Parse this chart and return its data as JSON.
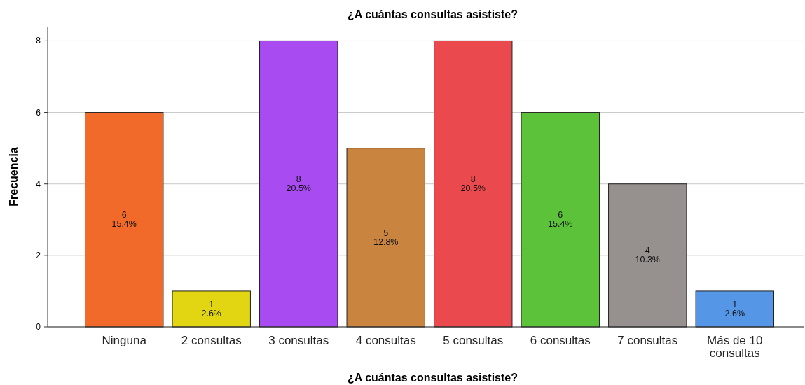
{
  "chart_data": {
    "type": "bar",
    "title": "¿A cuántas consultas asististe?",
    "xlabel": "¿A cuántas consultas asististe?",
    "ylabel": "Frecuencia",
    "categories": [
      "Ninguna",
      "2 consultas",
      "3 consultas",
      "4 consultas",
      "5 consultas",
      "6 consultas",
      "7 consultas",
      "Más de 10 consultas"
    ],
    "values": [
      6,
      1,
      8,
      5,
      8,
      6,
      4,
      1
    ],
    "colors": [
      "#f26a2a",
      "#e2d511",
      "#a84bf0",
      "#c98540",
      "#ea4a4d",
      "#5cc23a",
      "#96918e",
      "#5597e6"
    ],
    "value_labels": [
      "6\n15.4%",
      "1\n2.6%",
      "8\n20.5%",
      "5\n12.8%",
      "8\n20.5%",
      "6\n15.4%",
      "4\n10.3%",
      "1\n2.6%"
    ],
    "ylim": [
      0,
      8.4
    ],
    "yticks": [
      0,
      2,
      4,
      6,
      8
    ],
    "grid": "y"
  }
}
